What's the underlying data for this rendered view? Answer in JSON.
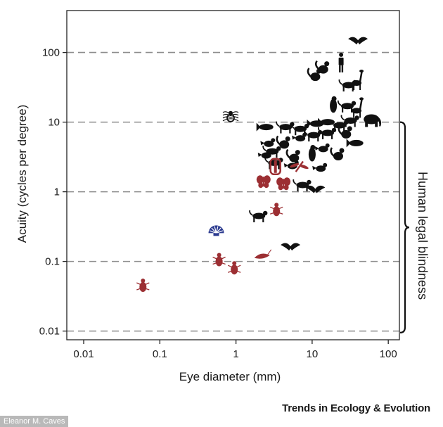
{
  "chart_data": {
    "type": "scatter",
    "title": "",
    "xlabel": "Eye diameter (mm)",
    "ylabel": "Acuity (cycles per degree)",
    "xscale": "log",
    "yscale": "log",
    "xlim": [
      0.006,
      140
    ],
    "ylim": [
      0.0075,
      400
    ],
    "xticks": [
      0.01,
      0.1,
      1,
      10,
      100
    ],
    "xtick_labels": [
      "0.01",
      "0.1",
      "1",
      "10",
      "100"
    ],
    "yticks": [
      0.01,
      0.1,
      1,
      10,
      100
    ],
    "ytick_labels": [
      "0.01",
      "0.1",
      "1",
      "10",
      "100"
    ],
    "grid": "horizontal dashed at y ticks",
    "annotation": {
      "text": "Human legal blindness",
      "y_range": [
        0.0095,
        10
      ]
    },
    "colors": {
      "vertebrate": "#111111",
      "insect": "#9c2f33",
      "mollusc": "#2b3a8f",
      "spider_outline": "#111111"
    },
    "series": [
      {
        "color": "vertebrate",
        "points": [
          {
            "x": 40,
            "y": 150,
            "icon": "eagle-icon"
          },
          {
            "x": 24,
            "y": 70,
            "icon": "human-icon"
          },
          {
            "x": 14,
            "y": 60,
            "icon": "primate-icon"
          },
          {
            "x": 11,
            "y": 47,
            "icon": "monkey-icon"
          },
          {
            "x": 40,
            "y": 40,
            "icon": "giraffe-icon"
          },
          {
            "x": 30,
            "y": 34,
            "icon": "cheetah-icon"
          },
          {
            "x": 19,
            "y": 18,
            "icon": "penguin-icon"
          },
          {
            "x": 29,
            "y": 17,
            "icon": "camel-icon"
          },
          {
            "x": 40,
            "y": 16,
            "icon": "ostrich-icon"
          },
          {
            "x": 60,
            "y": 11,
            "icon": "elephant-icon"
          },
          {
            "x": 2.5,
            "y": 8.5,
            "icon": "fish-icon"
          },
          {
            "x": 4.5,
            "y": 8.5,
            "icon": "dog-icon"
          },
          {
            "x": 7,
            "y": 8,
            "icon": "cat-icon"
          },
          {
            "x": 11.5,
            "y": 9.5,
            "icon": "fish-2-icon"
          },
          {
            "x": 16,
            "y": 10,
            "icon": "seal-icon"
          },
          {
            "x": 23,
            "y": 9,
            "icon": "horse-icon"
          },
          {
            "x": 32,
            "y": 10.5,
            "icon": "cat-2-icon"
          },
          {
            "x": 16,
            "y": 7,
            "icon": "dog-2-icon"
          },
          {
            "x": 28,
            "y": 7,
            "icon": "rabbit-icon"
          },
          {
            "x": 38,
            "y": 5,
            "icon": "dolphin-icon"
          },
          {
            "x": 2.7,
            "y": 5,
            "icon": "bird-icon"
          },
          {
            "x": 4.3,
            "y": 5,
            "icon": "squirrel-icon"
          },
          {
            "x": 7,
            "y": 6,
            "icon": "bird-2-icon"
          },
          {
            "x": 10.5,
            "y": 6.5,
            "icon": "fox-icon"
          },
          {
            "x": 14,
            "y": 4.2,
            "icon": "bird-3-icon"
          },
          {
            "x": 3,
            "y": 3.8,
            "icon": "lizard-icon"
          },
          {
            "x": 5.8,
            "y": 3.2,
            "icon": "squirrel-2-icon"
          },
          {
            "x": 10,
            "y": 3.6,
            "icon": "owl-icon"
          },
          {
            "x": 22,
            "y": 3.4,
            "icon": "raccoon-icon"
          },
          {
            "x": 2.5,
            "y": 3.4,
            "icon": "bird-4-icon"
          },
          {
            "x": 3.2,
            "y": 2.6,
            "icon": "turtle-icon"
          },
          {
            "x": 5.5,
            "y": 2.4,
            "icon": "bird-5-icon"
          },
          {
            "x": 13,
            "y": 2.2,
            "icon": "bird-6-icon"
          },
          {
            "x": 7.5,
            "y": 1.25,
            "icon": "mouse-icon"
          },
          {
            "x": 11,
            "y": 1.1,
            "icon": "bat-2-icon"
          },
          {
            "x": 2.0,
            "y": 0.45,
            "icon": "rodent-icon"
          },
          {
            "x": 5.2,
            "y": 0.165,
            "icon": "bat-icon"
          }
        ]
      },
      {
        "color": "insect",
        "points": [
          {
            "x": 3.3,
            "y": 2.3,
            "icon": "mantis-icon"
          },
          {
            "x": 6.8,
            "y": 2.3,
            "icon": "dragonfly-icon"
          },
          {
            "x": 2.3,
            "y": 1.4,
            "icon": "butterfly-icon"
          },
          {
            "x": 4.2,
            "y": 1.3,
            "icon": "moth-icon"
          },
          {
            "x": 3.4,
            "y": 0.55,
            "icon": "bee-icon"
          },
          {
            "x": 0.6,
            "y": 0.105,
            "icon": "fly-icon"
          },
          {
            "x": 0.95,
            "y": 0.08,
            "icon": "ant-icon"
          },
          {
            "x": 2.2,
            "y": 0.12,
            "icon": "shrimp-icon"
          },
          {
            "x": 0.06,
            "y": 0.045,
            "icon": "beetle-icon"
          }
        ]
      },
      {
        "color": "mollusc",
        "points": [
          {
            "x": 0.55,
            "y": 0.28,
            "icon": "scallop-icon"
          }
        ]
      },
      {
        "color": "spider_outline",
        "points": [
          {
            "x": 0.85,
            "y": 12,
            "icon": "spider-icon"
          }
        ]
      }
    ]
  },
  "footer": {
    "credit": "Eleanor M. Caves",
    "journal": "Trends in Ecology & Evolution"
  }
}
